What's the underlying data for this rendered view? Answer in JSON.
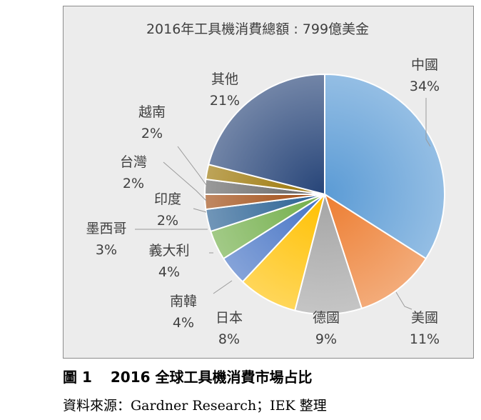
{
  "chart_data": {
    "type": "pie",
    "title": "2016年工具機消費總額 : 799億美金",
    "slices": [
      {
        "label": "中國",
        "value": 34,
        "value_label": "34%",
        "color": "#5b9bd5"
      },
      {
        "label": "美國",
        "value": 11,
        "value_label": "11%",
        "color": "#ed7d31"
      },
      {
        "label": "德國",
        "value": 9,
        "value_label": "9%",
        "color": "#a5a5a5"
      },
      {
        "label": "日本",
        "value": 8,
        "value_label": "8%",
        "color": "#ffc000"
      },
      {
        "label": "南韓",
        "value": 4,
        "value_label": "4%",
        "color": "#4472c4"
      },
      {
        "label": "義大利",
        "value": 4,
        "value_label": "4%",
        "color": "#70ad47"
      },
      {
        "label": "墨西哥",
        "value": 3,
        "value_label": "3%",
        "color": "#255e91"
      },
      {
        "label": "印度",
        "value": 2,
        "value_label": "2%",
        "color": "#9e480e"
      },
      {
        "label": "台灣",
        "value": 2,
        "value_label": "2%",
        "color": "#636363"
      },
      {
        "label": "越南",
        "value": 2,
        "value_label": "2%",
        "color": "#997300"
      },
      {
        "label": "其他",
        "value": 21,
        "value_label": "21%",
        "color": "#264478"
      }
    ],
    "legend": "none"
  },
  "caption": {
    "figure_number": "圖 1",
    "text": "2016 全球工具機消費市場占比"
  },
  "source": "資料來源：Gardner Research；IEK 整理"
}
